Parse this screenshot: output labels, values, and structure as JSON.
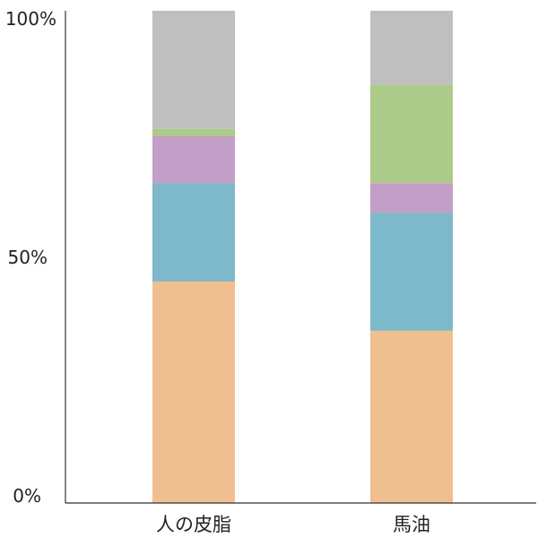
{
  "chart_data": {
    "type": "bar",
    "stacked": true,
    "percent": true,
    "categories": [
      "人の皮脂",
      "馬油"
    ],
    "series": [
      {
        "values": [
          45,
          35
        ],
        "color": "#F0BF8F"
      },
      {
        "values": [
          20,
          24
        ],
        "color": "#7EB8CB"
      },
      {
        "values": [
          9.5,
          6
        ],
        "color": "#C39EC6"
      },
      {
        "values": [
          1.5,
          20
        ],
        "color": "#ADCB88"
      },
      {
        "values": [
          24,
          15
        ],
        "color": "#BFBFBF"
      }
    ],
    "ylim": [
      0,
      100
    ],
    "y_ticks": [
      "0%",
      "50%",
      "100%"
    ],
    "grid": false,
    "legend": false
  }
}
